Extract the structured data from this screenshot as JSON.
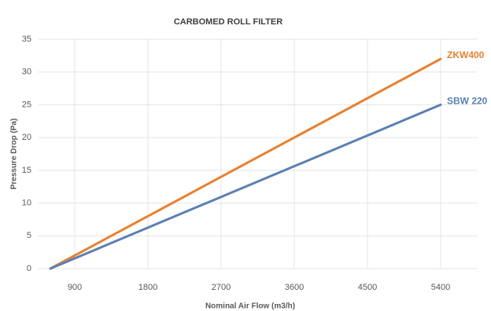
{
  "chart_data": {
    "type": "line",
    "title": "CARBOMED ROLL FILTER",
    "x_label": "Nominal Air Flow (m3/h)",
    "y_label": "Pressure Drop (Pa)",
    "x": [
      600,
      5400
    ],
    "series": [
      {
        "name": "ZKW400",
        "color": "#e8802f",
        "values": [
          0,
          32
        ]
      },
      {
        "name": "SBW 220",
        "color": "#5b80b2",
        "values": [
          0,
          25
        ]
      }
    ],
    "xlim": [
      450,
      5850
    ],
    "xticks": [
      900,
      1800,
      2700,
      3600,
      4500,
      5400
    ],
    "ylim": [
      0,
      35
    ],
    "yticks": [
      0,
      5,
      10,
      15,
      20,
      25,
      30,
      35
    ],
    "grid": true
  }
}
